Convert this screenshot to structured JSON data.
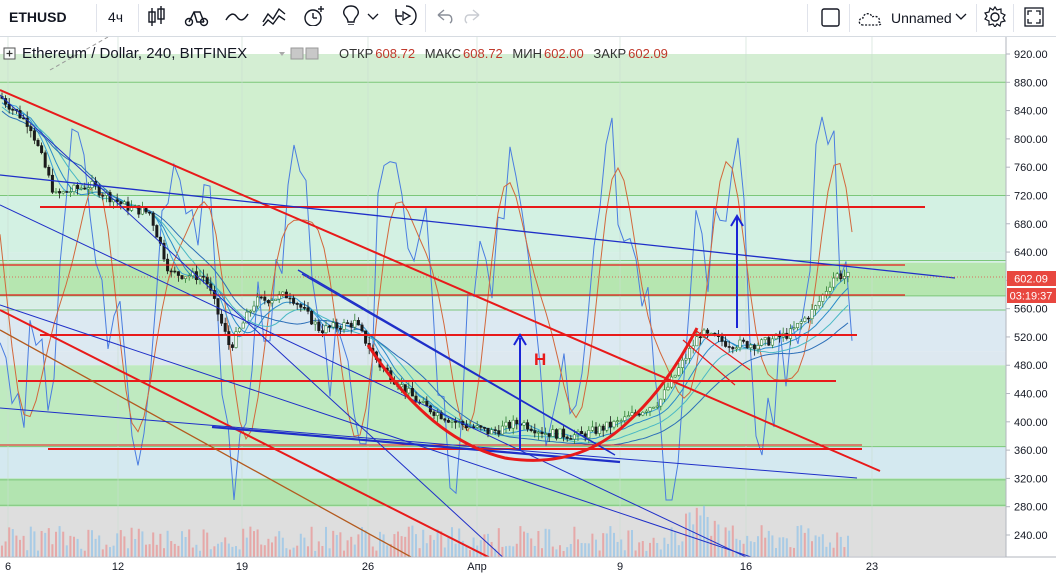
{
  "toolbar": {
    "symbol": "ETHUSD",
    "interval": "4ч",
    "icons": [
      "candles-icon",
      "indicators-icon",
      "drawing-icon",
      "compare-icon",
      "alert-icon",
      "idea-icon",
      "replay-icon",
      "undo-icon",
      "redo-icon"
    ],
    "layout_name": "Unnamed",
    "checkbox_icon": "checkbox-icon",
    "cloud_icon": "cloud-icon",
    "settings_icon": "gear-icon",
    "fullscreen_icon": "fullscreen-icon"
  },
  "legend": {
    "title": "Ethereum / Dollar, 240, BITFINEX",
    "open_label": "ОТКР",
    "open": "608.72",
    "high_label": "МАКС",
    "high": "608.72",
    "low_label": "МИН",
    "low": "602.00",
    "close_label": "ЗАКР",
    "close": "602.09"
  },
  "chart_data": {
    "type": "candlestick",
    "price_axis": [
      "920.00",
      "880.00",
      "840.00",
      "800.00",
      "760.00",
      "720.00",
      "680.00",
      "640.00",
      "600.00",
      "560.00",
      "520.00",
      "480.00",
      "440.00",
      "400.00",
      "360.00",
      "320.00",
      "280.00",
      "240.00"
    ],
    "time_axis": [
      "6",
      "12",
      "19",
      "26",
      "Апр",
      "9",
      "16",
      "23"
    ],
    "last_price": "602.09",
    "countdown": "03:19:37",
    "pattern_label": "Н",
    "colors": {
      "up": "#26a69a",
      "down": "#ef5350",
      "trend": "#e81a1a",
      "channel": "#1f2fc8",
      "osc": "#4a7de0",
      "osc2": "#d2683c"
    }
  }
}
